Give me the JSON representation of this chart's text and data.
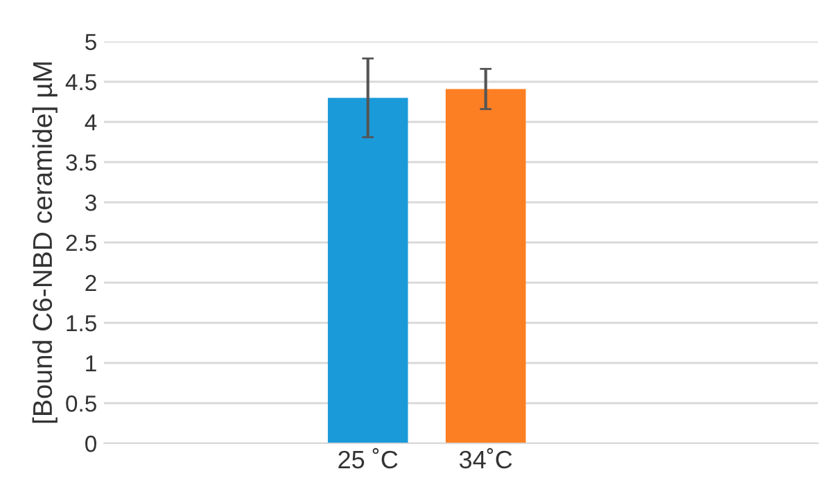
{
  "chart_data": {
    "type": "bar",
    "ylabel": "[Bound C6-NBD ceramide] µM",
    "categories": [
      "25 ˚C",
      "34˚C"
    ],
    "values": [
      4.3,
      4.41
    ],
    "colors": [
      "#1b9ad9",
      "#fd7f23"
    ],
    "errors": [
      0.49,
      0.25
    ],
    "ylim": [
      0,
      5
    ],
    "yticks": [
      0,
      0.5,
      1,
      1.5,
      2,
      2.5,
      3,
      3.5,
      4,
      4.5,
      5
    ],
    "grid": "y"
  }
}
